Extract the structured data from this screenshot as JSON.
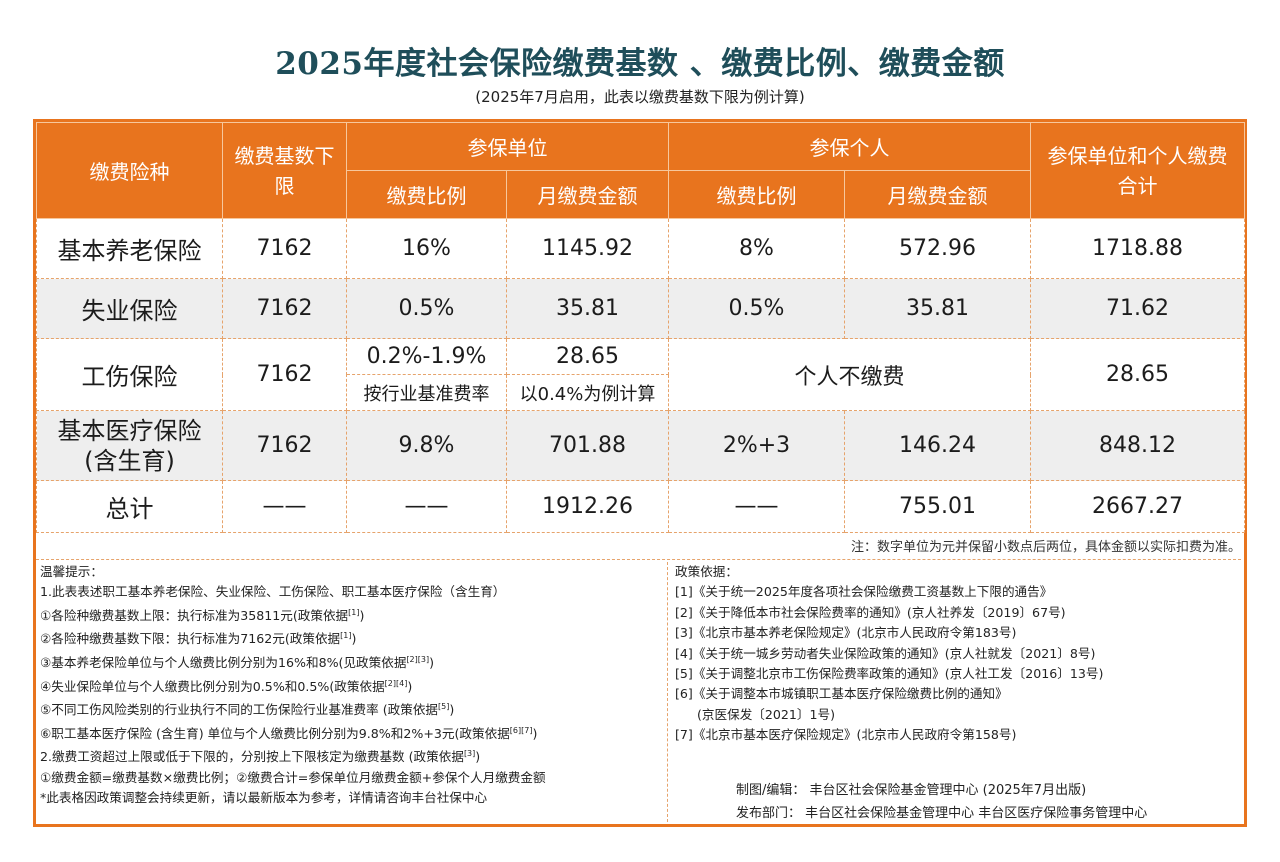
{
  "title": "2025年度社会保险缴费基数 、缴费比例、缴费金额",
  "subtitle": "(2025年7月启用，此表以缴费基数下限为例计算)",
  "header": {
    "type": "缴费险种",
    "base_lower": "缴费基数下限",
    "unit_group": "参保单位",
    "person_group": "参保个人",
    "total_col": "参保单位和个人缴费合计",
    "rate": "缴费比例",
    "monthly": "月缴费金额"
  },
  "rows": [
    {
      "name": "基本养老保险",
      "base": "7162",
      "unit_rate": "16%",
      "unit_amount": "1145.92",
      "person_rate": "8%",
      "person_amount": "572.96",
      "total": "1718.88"
    },
    {
      "name": "失业保险",
      "base": "7162",
      "unit_rate": "0.5%",
      "unit_amount": "35.81",
      "person_rate": "0.5%",
      "person_amount": "35.81",
      "total": "71.62"
    },
    {
      "name": "工伤保险",
      "base": "7162",
      "unit_rate": "0.2%-1.9%",
      "unit_rate_note": "按行业基准费率",
      "unit_amount": "28.65",
      "unit_amount_note": "以0.4%为例计算",
      "person_merged": "个人不缴费",
      "total": "28.65"
    },
    {
      "name_line1": "基本医疗保险",
      "name_line2": "(含生育)",
      "base": "7162",
      "unit_rate": "9.8%",
      "unit_amount": "701.88",
      "person_rate": "2%+3",
      "person_amount": "146.24",
      "total": "848.12"
    },
    {
      "name": "总计",
      "base": "——",
      "unit_rate": "——",
      "unit_amount": "1912.26",
      "person_rate": "——",
      "person_amount": "755.01",
      "total": "2667.27"
    }
  ],
  "note": "注：数字单位为元并保留小数点后两位，具体金额以实际扣费为准。",
  "tips": {
    "title": "温馨提示：",
    "l1": "1.此表表述职工基本养老保险、失业保险、工伤保险、职工基本医疗保险（含生育）",
    "l2": "①各险种缴费基数上限：执行标准为35811元(政策依据",
    "l2_sup": "[1]",
    "l2_end": ")",
    "l3": "②各险种缴费基数下限：执行标准为7162元(政策依据",
    "l3_sup": "[1]",
    "l3_end": ")",
    "l4": "③基本养老保险单位与个人缴费比例分别为16%和8%(见政策依据",
    "l4_sup": "[2][3]",
    "l4_end": ")",
    "l5": "④失业保险单位与个人缴费比例分别为0.5%和0.5%(政策依据",
    "l5_sup": "[2][4]",
    "l5_end": ")",
    "l6": "⑤不同工伤风险类别的行业执行不同的工伤保险行业基准费率 (政策依据",
    "l6_sup": "[5]",
    "l6_end": ")",
    "l7": "⑥职工基本医疗保险 (含生育) 单位与个人缴费比例分别为9.8%和2%+3元(政策依据",
    "l7_sup": "[6][7]",
    "l7_end": ")",
    "l8": "2.缴费工资超过上限或低于下限的，分别按上下限核定为缴费基数 (政策依据",
    "l8_sup": "[3]",
    "l8_end": ")",
    "l9": "①缴费金额=缴费基数×缴费比例；②缴费合计=参保单位月缴费金额+参保个人月缴费金额",
    "l10": "*此表格因政策调整会持续更新，请以最新版本为参考，详情请咨询丰台社保中心"
  },
  "policy": {
    "title": "政策依据：",
    "p1": "[1]《关于统一2025年度各项社会保险缴费工资基数上下限的通告》",
    "p2": "[2]《关于降低本市社会保险费率的通知》(京人社养发〔2019〕67号)",
    "p3": "[3]《北京市基本养老保险规定》(北京市人民政府令第183号)",
    "p4": "[4]《关于统一城乡劳动者失业保险政策的通知》(京人社就发〔2021〕8号)",
    "p5": "[5]《关于调整北京市工伤保险费率政策的通知》(京人社工发〔2016〕13号)",
    "p6": "[6]《关于调整本市城镇职工基本医疗保险缴费比例的通知》",
    "p6b": "(京医保发〔2021〕1号)",
    "p7": "[7]《北京市基本医疗保险规定》(北京市人民政府令第158号)"
  },
  "credits": {
    "editor": "制图/编辑： 丰台区社会保险基金管理中心 (2025年7月出版)",
    "publisher": "发布部门： 丰台区社会保险基金管理中心   丰台区医疗保险事务管理中心"
  }
}
